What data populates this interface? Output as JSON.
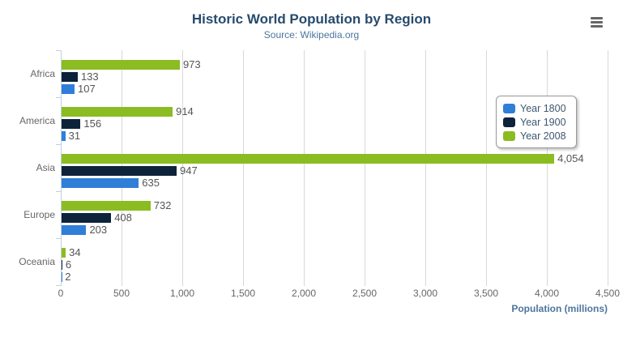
{
  "chart_data": {
    "type": "bar",
    "orientation": "horizontal",
    "title": "Historic World Population by Region",
    "subtitle": "Source: Wikipedia.org",
    "categories": [
      "Africa",
      "America",
      "Asia",
      "Europe",
      "Oceania"
    ],
    "series": [
      {
        "name": "Year 1800",
        "color": "#2f7ed8",
        "values": [
          107,
          31,
          635,
          203,
          2
        ]
      },
      {
        "name": "Year 1900",
        "color": "#0d233a",
        "values": [
          133,
          156,
          947,
          408,
          6
        ]
      },
      {
        "name": "Year 2008",
        "color": "#8bbc21",
        "values": [
          973,
          914,
          4054,
          732,
          34
        ]
      }
    ],
    "bar_display_order_top_to_bottom": [
      "Year 2008",
      "Year 1900",
      "Year 1800"
    ],
    "data_labels_visible": true,
    "xlabel": "Population (millions)",
    "xlim": [
      0,
      4500
    ],
    "x_tick_labels": [
      "0",
      "500",
      "1,000",
      "1,500",
      "2,000",
      "2,500",
      "3,000",
      "3,500",
      "4,000",
      "4,500"
    ],
    "grid": true,
    "legend_position": "right",
    "legend_entries": [
      "Year 1800",
      "Year 1900",
      "Year 2008"
    ]
  },
  "toolbar": {
    "export_menu_icon": "hamburger-icon"
  },
  "colors": {
    "title": "#274b6d",
    "subtitle": "#4d759e",
    "axis_title": "#4d759e",
    "axis_labels": "#666666",
    "data_labels": "#555555",
    "gridline": "#d8d8d8",
    "category_axis_line": "#c0d0e0",
    "legend_text": "#3E576F",
    "legend_border": "#999999",
    "export_icon": "#666666"
  }
}
